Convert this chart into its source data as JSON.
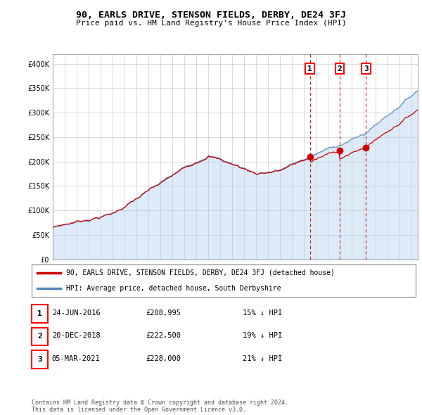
{
  "title": "90, EARLS DRIVE, STENSON FIELDS, DERBY, DE24 3FJ",
  "subtitle": "Price paid vs. HM Land Registry's House Price Index (HPI)",
  "ytick_values": [
    0,
    50000,
    100000,
    150000,
    200000,
    250000,
    300000,
    350000,
    400000
  ],
  "ylim": [
    0,
    420000
  ],
  "xlim_start": 1995.0,
  "xlim_end": 2025.5,
  "hpi_color": "#5588bb",
  "hpi_fill_color": "#aaccee",
  "price_color": "#cc0000",
  "sale_dates": [
    2016.48,
    2018.97,
    2021.18
  ],
  "sale_prices": [
    208995,
    222500,
    228000
  ],
  "sale_labels": [
    "1",
    "2",
    "3"
  ],
  "legend_label_red": "90, EARLS DRIVE, STENSON FIELDS, DERBY, DE24 3FJ (detached house)",
  "legend_label_blue": "HPI: Average price, detached house, South Derbyshire",
  "table_rows": [
    [
      "1",
      "24-JUN-2016",
      "£208,995",
      "15% ↓ HPI"
    ],
    [
      "2",
      "20-DEC-2018",
      "£222,500",
      "19% ↓ HPI"
    ],
    [
      "3",
      "05-MAR-2021",
      "£228,000",
      "21% ↓ HPI"
    ]
  ],
  "footer": "Contains HM Land Registry data © Crown copyright and database right 2024.\nThis data is licensed under the Open Government Licence v3.0.",
  "background_color": "#ffffff",
  "grid_color": "#cccccc"
}
